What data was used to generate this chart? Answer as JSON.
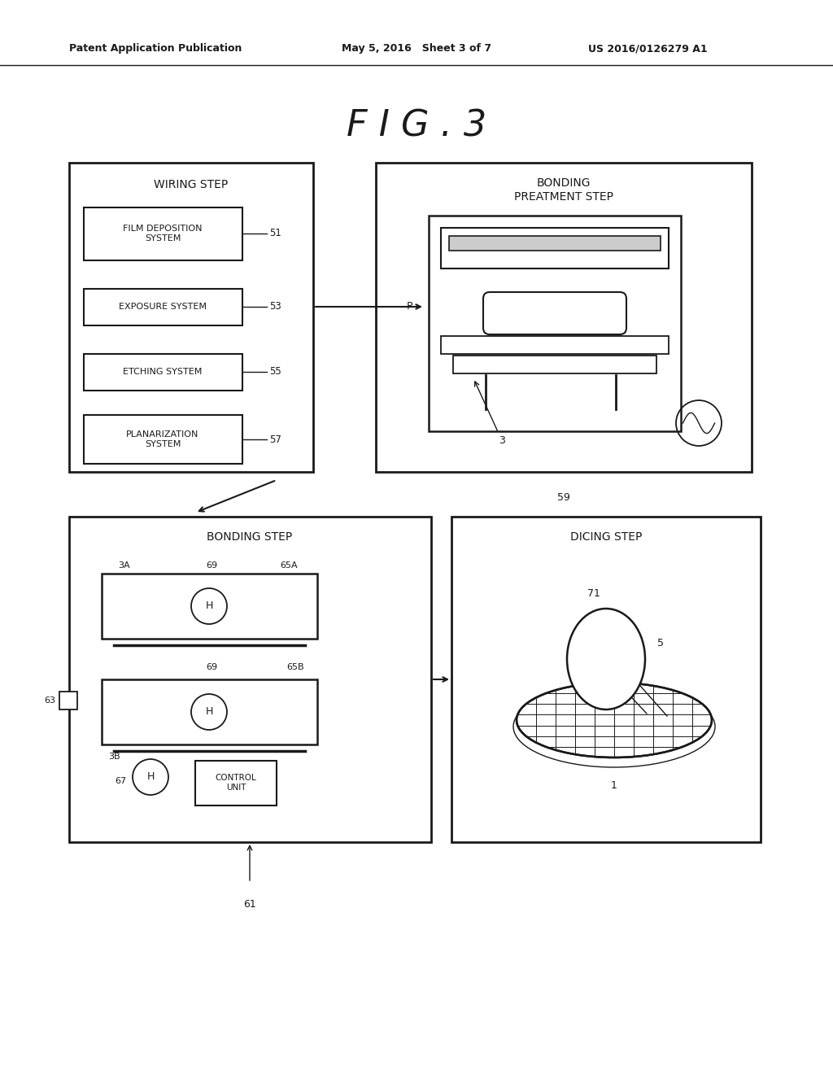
{
  "bg_color": "#ffffff",
  "line_color": "#1a1a1a",
  "header_left": "Patent Application Publication",
  "header_center": "May 5, 2016   Sheet 3 of 7",
  "header_right": "US 2016/0126279 A1",
  "title": "F I G . 3",
  "fig_w": 10.24,
  "fig_h": 13.2,
  "dpi": 100
}
